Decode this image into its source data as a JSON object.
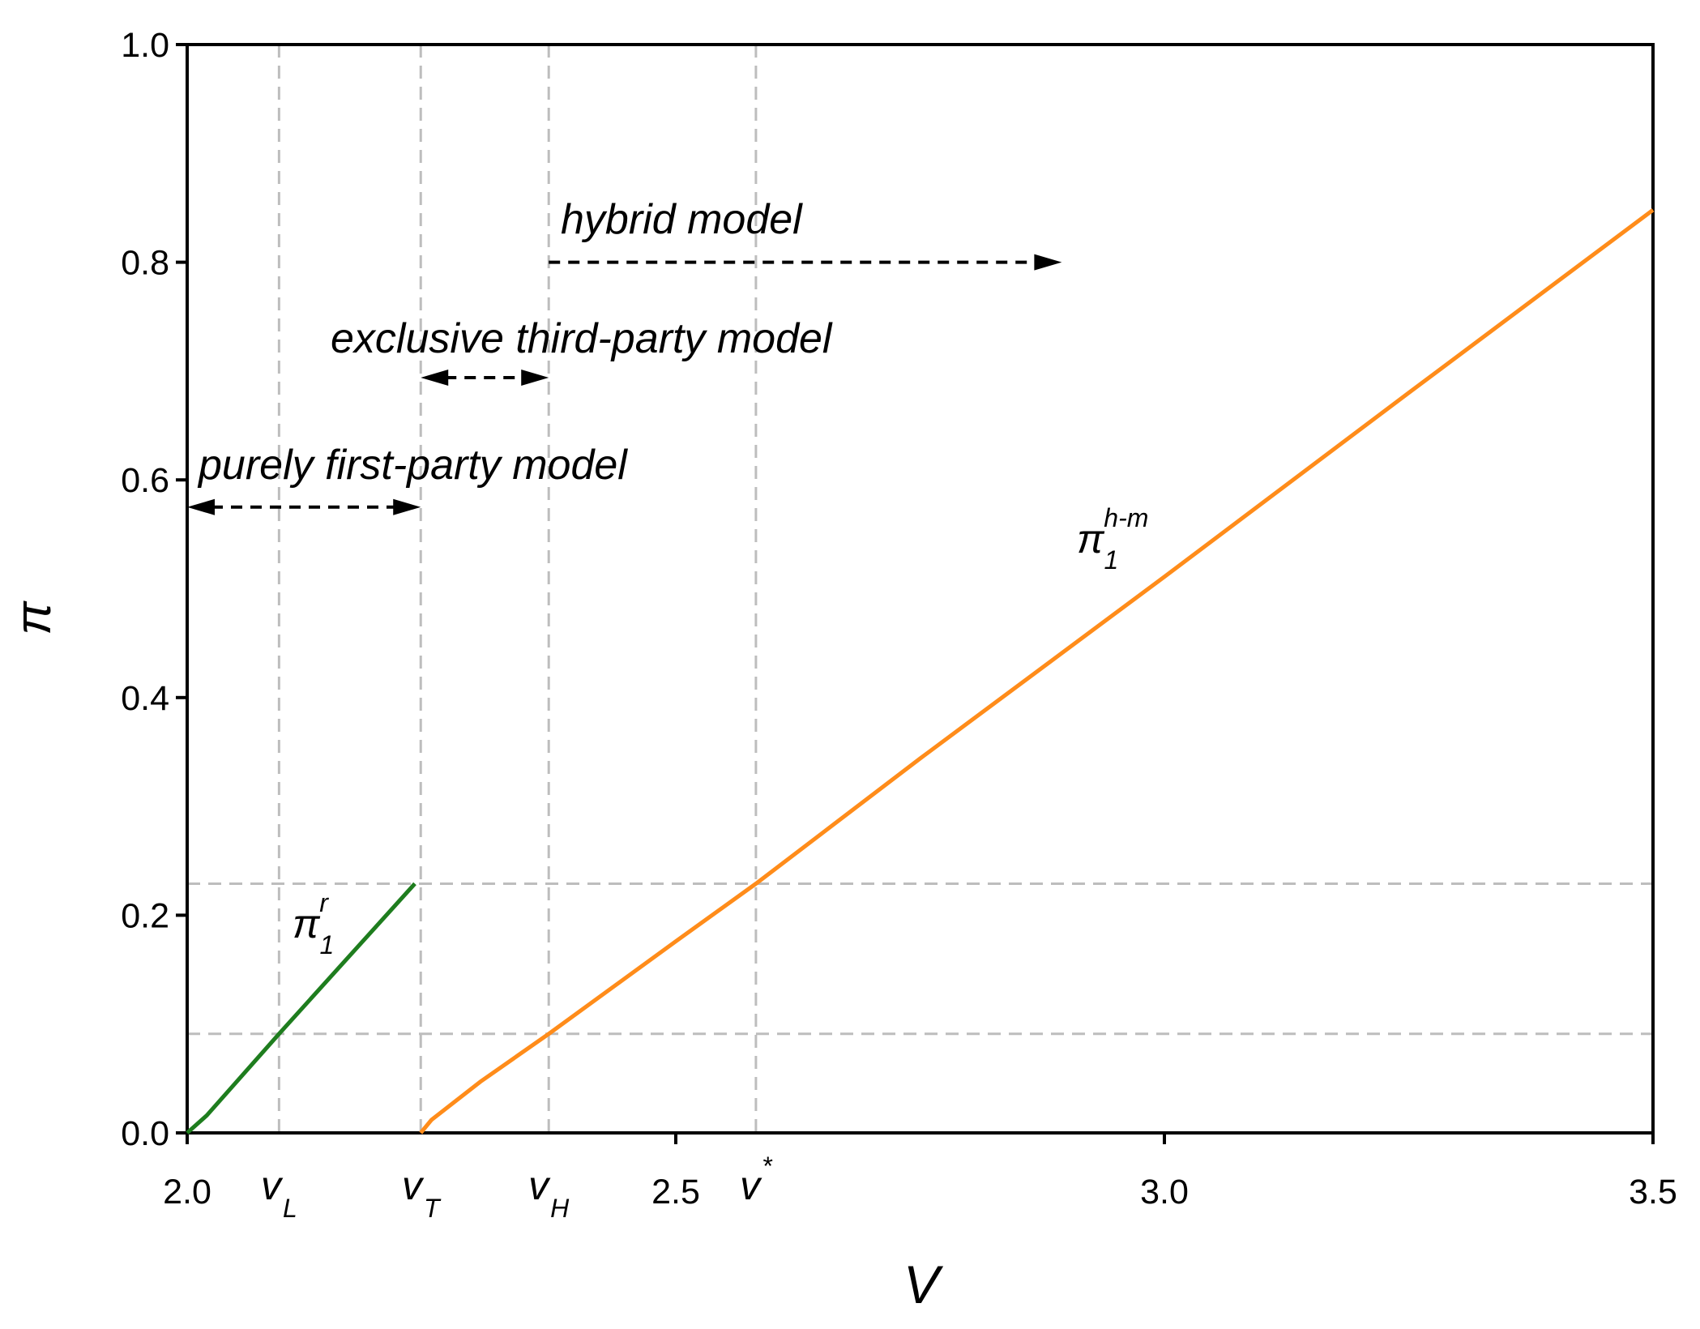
{
  "chart_data": {
    "type": "line",
    "xlabel": "V",
    "ylabel": "π",
    "xlim": [
      2.0,
      3.5
    ],
    "ylim": [
      0,
      1.0
    ],
    "xticks": [
      {
        "value": 2.0,
        "label": "2.0"
      },
      {
        "value": 2.5,
        "label": "2.5"
      },
      {
        "value": 3.0,
        "label": "3.0"
      },
      {
        "value": 3.5,
        "label": "3.5"
      }
    ],
    "yticks": [
      {
        "value": 0,
        "label": "0.0"
      },
      {
        "value": 0.2,
        "label": "0.2"
      },
      {
        "value": 0.4,
        "label": "0.4"
      },
      {
        "value": 0.6,
        "label": "0.6"
      },
      {
        "value": 0.8,
        "label": "0.8"
      },
      {
        "value": 1.0,
        "label": "1.0"
      }
    ],
    "vlines": [
      {
        "x": 2.094,
        "label": "v",
        "sub": "L"
      },
      {
        "x": 2.239,
        "label": "v",
        "sub": "T"
      },
      {
        "x": 2.37,
        "label": "v",
        "sub": "H"
      },
      {
        "x": 2.582,
        "label": "v",
        "sup": "*"
      }
    ],
    "hlines": [
      0.229,
      0.091
    ],
    "series": [
      {
        "label": {
          "symbol": "π",
          "sub": "1",
          "sup": "r"
        },
        "color": "#1e7d1e",
        "x": [
          2.0,
          2.02,
          2.094,
          2.233
        ],
        "values": [
          0,
          0.016,
          0.091,
          0.229
        ]
      },
      {
        "label": {
          "symbol": "π",
          "sub": "1",
          "sup": "h-m"
        },
        "color": "#ff8c1a",
        "x": [
          2.239,
          2.25,
          2.3,
          2.37,
          2.5,
          2.582,
          2.75,
          3.0,
          3.25,
          3.5
        ],
        "values": [
          0,
          0.012,
          0.047,
          0.091,
          0.176,
          0.229,
          0.344,
          0.511,
          0.68,
          0.848
        ]
      }
    ],
    "annotations": [
      {
        "text": "hybrid model",
        "from": 2.37,
        "to": 2.895,
        "y": 0.8,
        "heads": "end"
      },
      {
        "text": "exclusive third-party model",
        "from": 2.239,
        "to": 2.37,
        "y": 0.694,
        "heads": "both"
      },
      {
        "text": "purely first-party model",
        "from": 2.0,
        "to": 2.239,
        "y": 0.575,
        "heads": "both"
      }
    ]
  }
}
